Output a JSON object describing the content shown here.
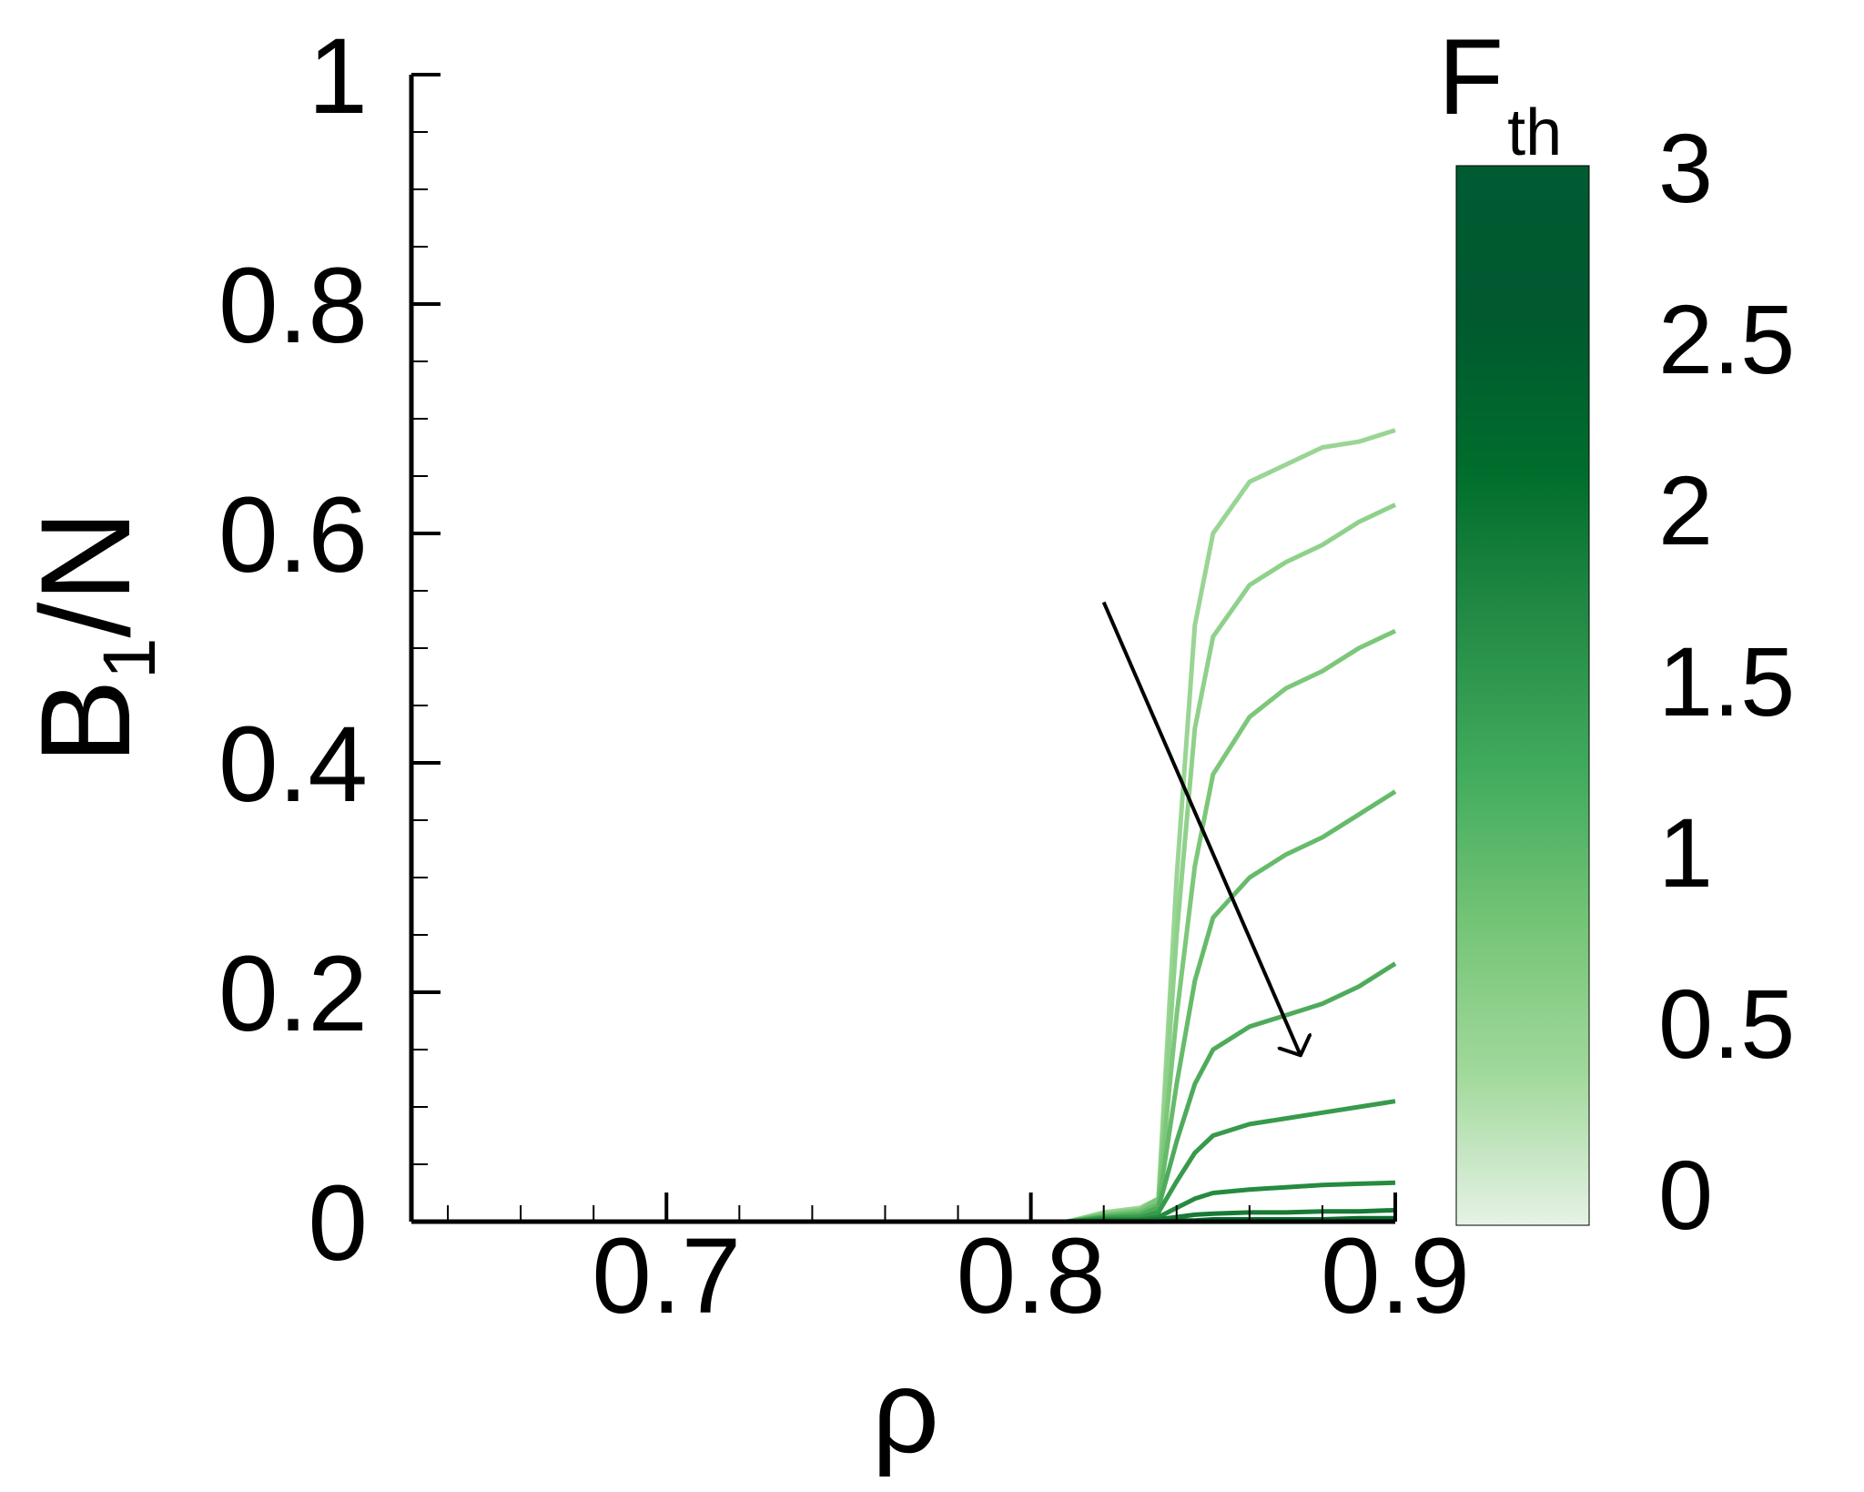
{
  "chart_data": {
    "type": "line",
    "xlabel": "ρ",
    "ylabel": {
      "base": "B",
      "subscript": "1",
      "suffix": "/N"
    },
    "xlim": [
      0.63,
      0.9
    ],
    "ylim": [
      0,
      1
    ],
    "x_ticks": [
      {
        "value": 0.7,
        "label": "0.7"
      },
      {
        "value": 0.8,
        "label": "0.8"
      },
      {
        "value": 0.9,
        "label": "0.9"
      }
    ],
    "y_ticks": [
      {
        "value": 0,
        "label": "0"
      },
      {
        "value": 0.2,
        "label": "0.2"
      },
      {
        "value": 0.4,
        "label": "0.4"
      },
      {
        "value": 0.6,
        "label": "0.6"
      },
      {
        "value": 0.8,
        "label": "0.8"
      },
      {
        "value": 1,
        "label": "1"
      }
    ],
    "grid": false,
    "colorbar": {
      "label": {
        "base": "F",
        "subscript": "th"
      },
      "range": [
        0,
        3
      ],
      "position": "right",
      "ticks": [
        {
          "value": 0,
          "label": "0"
        },
        {
          "value": 0.5,
          "label": "0.5"
        },
        {
          "value": 1,
          "label": "1"
        },
        {
          "value": 1.5,
          "label": "1.5"
        },
        {
          "value": 2,
          "label": "2"
        },
        {
          "value": 2.5,
          "label": "2.5"
        },
        {
          "value": 3,
          "label": "3"
        }
      ],
      "colors": [
        "#e6f2e6",
        "#a1d99b",
        "#74c476",
        "#41ab5d",
        "#238b45",
        "#006d2c",
        "#00592f",
        "#005a32"
      ]
    },
    "annotation": {
      "type": "arrow",
      "meaning": "increasing F_th",
      "from": [
        0.82,
        0.54
      ],
      "to": [
        0.874,
        0.145
      ]
    },
    "series": [
      {
        "color": "#99d594",
        "x": [
          0.81,
          0.82,
          0.83,
          0.835,
          0.84,
          0.845,
          0.85,
          0.86,
          0.87,
          0.88,
          0.89,
          0.9
        ],
        "y": [
          0,
          0.008,
          0.012,
          0.02,
          0.3,
          0.52,
          0.6,
          0.645,
          0.66,
          0.675,
          0.68,
          0.69
        ]
      },
      {
        "color": "#8fd18a",
        "x": [
          0.81,
          0.82,
          0.83,
          0.835,
          0.84,
          0.845,
          0.85,
          0.86,
          0.87,
          0.88,
          0.89,
          0.9
        ],
        "y": [
          0,
          0.007,
          0.01,
          0.02,
          0.25,
          0.43,
          0.51,
          0.555,
          0.575,
          0.59,
          0.61,
          0.625
        ]
      },
      {
        "color": "#7cc77a",
        "x": [
          0.81,
          0.82,
          0.83,
          0.835,
          0.84,
          0.845,
          0.85,
          0.86,
          0.87,
          0.88,
          0.89,
          0.9
        ],
        "y": [
          0,
          0.006,
          0.01,
          0.02,
          0.18,
          0.31,
          0.39,
          0.44,
          0.465,
          0.48,
          0.5,
          0.515
        ]
      },
      {
        "color": "#66bb6a",
        "x": [
          0.81,
          0.82,
          0.83,
          0.835,
          0.84,
          0.845,
          0.85,
          0.86,
          0.87,
          0.88,
          0.89,
          0.9
        ],
        "y": [
          0,
          0.005,
          0.008,
          0.015,
          0.12,
          0.21,
          0.265,
          0.3,
          0.32,
          0.335,
          0.355,
          0.375
        ]
      },
      {
        "color": "#4eab5c",
        "x": [
          0.81,
          0.82,
          0.83,
          0.835,
          0.84,
          0.845,
          0.85,
          0.86,
          0.87,
          0.88,
          0.89,
          0.9
        ],
        "y": [
          0,
          0.004,
          0.006,
          0.012,
          0.07,
          0.12,
          0.15,
          0.17,
          0.18,
          0.19,
          0.205,
          0.225
        ]
      },
      {
        "color": "#379a4c",
        "x": [
          0.81,
          0.82,
          0.83,
          0.835,
          0.84,
          0.845,
          0.85,
          0.86,
          0.87,
          0.88,
          0.89,
          0.9
        ],
        "y": [
          0,
          0.003,
          0.004,
          0.008,
          0.035,
          0.06,
          0.075,
          0.085,
          0.09,
          0.095,
          0.1,
          0.105
        ]
      },
      {
        "color": "#258b3f",
        "x": [
          0.81,
          0.82,
          0.83,
          0.835,
          0.84,
          0.845,
          0.85,
          0.86,
          0.87,
          0.88,
          0.89,
          0.9
        ],
        "y": [
          0,
          0.002,
          0.002,
          0.004,
          0.012,
          0.02,
          0.025,
          0.028,
          0.03,
          0.032,
          0.033,
          0.034
        ]
      },
      {
        "color": "#177a35",
        "x": [
          0.81,
          0.82,
          0.83,
          0.835,
          0.84,
          0.845,
          0.85,
          0.86,
          0.87,
          0.88,
          0.89,
          0.9
        ],
        "y": [
          0,
          0.001,
          0.001,
          0.002,
          0.004,
          0.006,
          0.007,
          0.008,
          0.008,
          0.009,
          0.009,
          0.01
        ]
      },
      {
        "color": "#0b6a2d",
        "x": [
          0.81,
          0.82,
          0.83,
          0.835,
          0.84,
          0.845,
          0.85,
          0.86,
          0.87,
          0.88,
          0.89,
          0.9
        ],
        "y": [
          0,
          0,
          0,
          0,
          0.001,
          0.001,
          0.002,
          0.002,
          0.002,
          0.002,
          0.003,
          0.003
        ]
      }
    ]
  }
}
